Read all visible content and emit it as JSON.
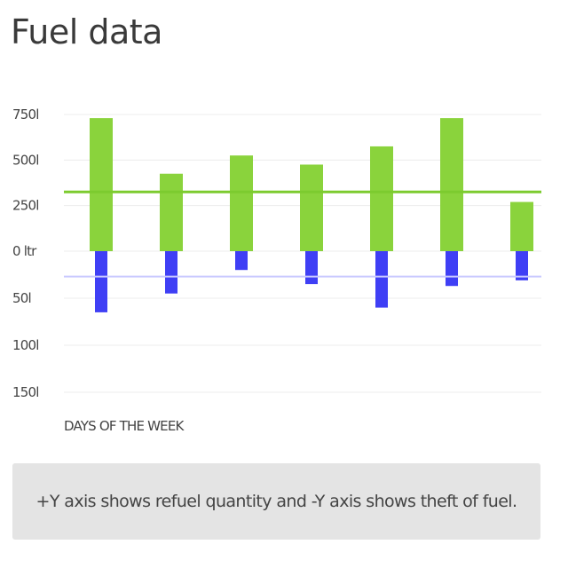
{
  "title": "Fuel data",
  "note": "+Y axis shows refuel quantity and -Y axis shows theft of fuel.",
  "chart_data": {
    "type": "bar",
    "xlabel": "DAYS OF THE WEEK",
    "categories": [
      "",
      "",
      "",
      "",
      "",
      "",
      ""
    ],
    "y_ticks": [
      {
        "value": 750,
        "label": "750l"
      },
      {
        "value": 500,
        "label": "500l"
      },
      {
        "value": 250,
        "label": "250l"
      },
      {
        "value": 0,
        "label": "0 ltr"
      },
      {
        "value": -50,
        "label": "50l"
      },
      {
        "value": -100,
        "label": "100l"
      },
      {
        "value": -150,
        "label": "150l"
      }
    ],
    "series": [
      {
        "values": [
          730,
          425,
          525,
          475,
          575,
          730,
          270
        ],
        "color": "#8ad33c"
      },
      {
        "values": [
          -65,
          -45,
          -20,
          -35,
          -60,
          -37,
          -31
        ],
        "color": "#3f3ff5"
      }
    ],
    "average_lines": [
      {
        "value": 325,
        "color": "#7ccb2f"
      },
      {
        "value": -27,
        "color": "#c9c9ff"
      }
    ],
    "grid": true,
    "legend": "none"
  }
}
